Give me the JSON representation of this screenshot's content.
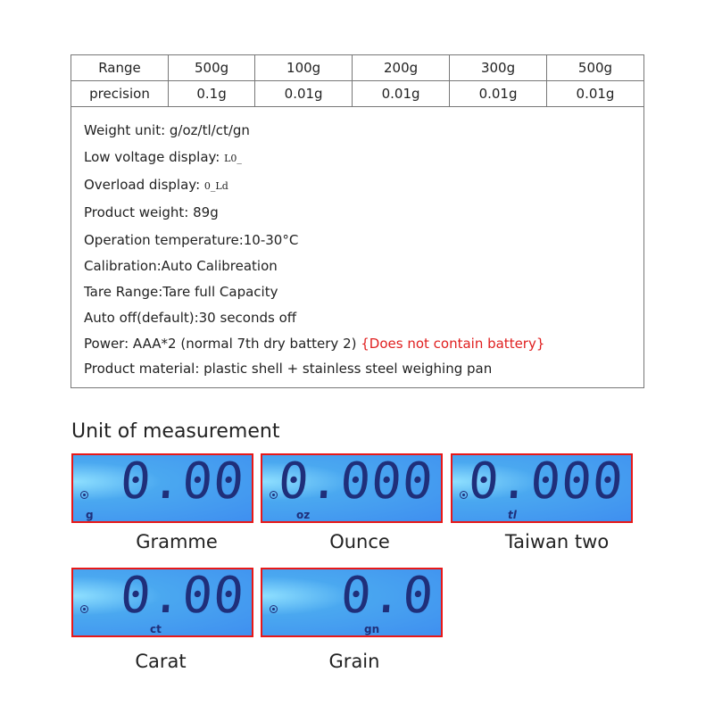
{
  "table": {
    "rows": [
      [
        "Range",
        "500g",
        "100g",
        "200g",
        "300g",
        "500g"
      ],
      [
        "precision",
        "0.1g",
        "0.01g",
        "0.01g",
        "0.01g",
        "0.01g"
      ]
    ]
  },
  "specs": {
    "weight_unit": "Weight unit: g/oz/tl/ct/gn",
    "low_voltage_label": "Low voltage display: ",
    "low_voltage_value": "L0_",
    "overload_label": "Overload display: ",
    "overload_value": "0_Ld",
    "product_weight": "Product weight: 89g",
    "temperature": "Operation temperature:10-30°C",
    "calibration": "Calibration:Auto Calibreation",
    "tare": "Tare Range:Tare full Capacity",
    "auto_off": "Auto off(default):30 seconds off",
    "power": "Power: AAA*2 (normal 7th dry battery 2) ",
    "power_note": "{Does not contain battery}",
    "material": "Product material: plastic shell + stainless steel weighing pan"
  },
  "colors": {
    "note": "#e02020",
    "lcd_border": "#e81818",
    "lcd_bg": "#3f8ff0"
  },
  "section_title": "Unit of measurement",
  "displays": [
    {
      "reading": "0.00",
      "unit": "g",
      "caption": "Gramme"
    },
    {
      "reading": "0.000",
      "unit": "oz",
      "caption": "Ounce"
    },
    {
      "reading": "0.000",
      "unit": "tl",
      "caption": "Taiwan two"
    },
    {
      "reading": "0.00",
      "unit": "ct",
      "caption": "Carat"
    },
    {
      "reading": "0.0",
      "unit": "gn",
      "caption": "Grain"
    }
  ]
}
